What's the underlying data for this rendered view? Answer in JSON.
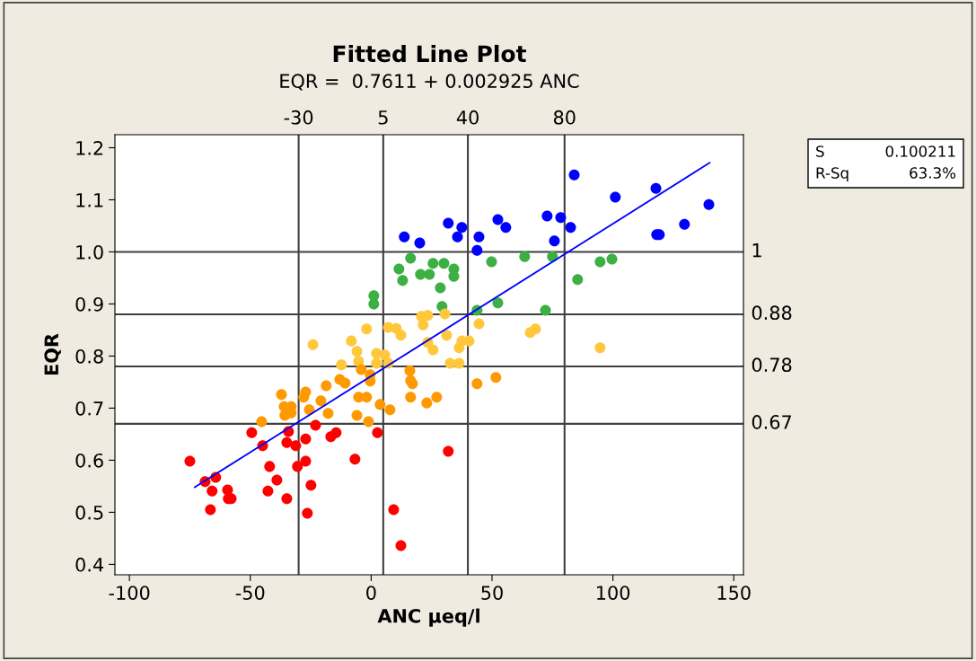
{
  "chart_data": {
    "type": "scatter",
    "title": "Fitted Line Plot",
    "subtitle": "EQR =  0.7611 + 0.002925 ANC",
    "xlabel": "ANC µeq/l",
    "ylabel": "EQR",
    "xlim": [
      -106,
      154
    ],
    "ylim": [
      0.38,
      1.225
    ],
    "xticks": [
      -100,
      -50,
      0,
      50,
      100,
      150
    ],
    "yticks": [
      0.4,
      0.5,
      0.6,
      0.7,
      0.8,
      0.9,
      {
        "value": 1.0,
        "label": "1.0"
      },
      1.1,
      1.2
    ],
    "marker": "circle",
    "grid": false,
    "legend": false,
    "series": [
      {
        "color": "#0000ff",
        "x": [
          13.7,
          20.1,
          31.9,
          37.5,
          35.7,
          44.6,
          43.8,
          52.4,
          55.7,
          72.8,
          78.4,
          82.5,
          75.8,
          84.0,
          101.0,
          117.8,
          139.7,
          129.6,
          119.2,
          118.1
        ],
        "values": [
          1.029,
          1.017,
          1.055,
          1.047,
          1.029,
          1.029,
          1.003,
          1.062,
          1.047,
          1.069,
          1.066,
          1.047,
          1.021,
          1.148,
          1.105,
          1.122,
          1.091,
          1.053,
          1.033,
          1.033
        ]
      },
      {
        "color": "#3cb043",
        "x": [
          16.3,
          11.5,
          13.0,
          20.4,
          24.1,
          25.6,
          30.1,
          34.2,
          34.2,
          28.6,
          29.3,
          1.1,
          1.1,
          49.8,
          63.5,
          75.0,
          85.4,
          94.7,
          99.6,
          43.8,
          52.4,
          72.1
        ],
        "values": [
          0.988,
          0.967,
          0.945,
          0.957,
          0.957,
          0.978,
          0.978,
          0.967,
          0.953,
          0.931,
          0.895,
          0.916,
          0.9,
          0.981,
          0.991,
          0.991,
          0.947,
          0.981,
          0.986,
          0.888,
          0.902,
          0.888
        ]
      },
      {
        "color": "#ffc83c",
        "x": [
          -24.1,
          -1.9,
          -8.2,
          -5.9,
          -5.2,
          -12.3,
          2.2,
          5.6,
          2.2,
          7.1,
          7.1,
          10.4,
          12.3,
          20.8,
          23.4,
          21.5,
          30.5,
          31.2,
          23.4,
          25.6,
          37.5,
          40.5,
          36.4,
          32.7,
          36.4,
          44.6,
          65.8,
          68.0,
          94.7
        ],
        "values": [
          0.822,
          0.852,
          0.829,
          0.809,
          0.79,
          0.783,
          0.805,
          0.802,
          0.786,
          0.786,
          0.855,
          0.853,
          0.84,
          0.876,
          0.878,
          0.86,
          0.881,
          0.84,
          0.826,
          0.812,
          0.829,
          0.829,
          0.816,
          0.786,
          0.786,
          0.862,
          0.845,
          0.852,
          0.816
        ]
      },
      {
        "color": "#ff9900",
        "x": [
          -37.1,
          -45.3,
          -36.0,
          -33.1,
          -35.7,
          -33.1,
          -27.1,
          -27.9,
          -25.6,
          -20.8,
          -18.6,
          -17.8,
          -13.0,
          -10.8,
          -5.2,
          -1.9,
          -5.9,
          -1.1,
          3.7,
          7.8,
          -4.1,
          -0.4,
          -0.4,
          16.0,
          16.3,
          17.1,
          16.3,
          23.0,
          27.1,
          43.8,
          51.6
        ],
        "values": [
          0.726,
          0.674,
          0.703,
          0.703,
          0.686,
          0.691,
          0.731,
          0.721,
          0.697,
          0.714,
          0.743,
          0.69,
          0.755,
          0.748,
          0.721,
          0.721,
          0.686,
          0.674,
          0.707,
          0.697,
          0.774,
          0.764,
          0.752,
          0.772,
          0.753,
          0.747,
          0.721,
          0.71,
          0.721,
          0.747,
          0.759
        ]
      },
      {
        "color": "#ff0000",
        "x": [
          -75.0,
          -68.7,
          -64.3,
          -65.8,
          -66.5,
          -59.4,
          -57.9,
          -59.1,
          -49.4,
          -44.9,
          -42.0,
          -39.0,
          -42.7,
          -34.9,
          -34.2,
          -34.9,
          -31.2,
          -27.1,
          -27.1,
          -30.5,
          -24.9,
          -26.4,
          -23.0,
          -16.7,
          -14.5,
          -6.7,
          2.6,
          9.3,
          31.9,
          12.3
        ],
        "values": [
          0.598,
          0.559,
          0.567,
          0.541,
          0.505,
          0.543,
          0.526,
          0.526,
          0.653,
          0.628,
          0.588,
          0.562,
          0.541,
          0.526,
          0.655,
          0.634,
          0.628,
          0.641,
          0.598,
          0.588,
          0.552,
          0.498,
          0.667,
          0.645,
          0.653,
          0.602,
          0.653,
          0.505,
          0.617,
          0.436
        ]
      },
      {
        "type": "line",
        "color": "#0000ff",
        "marker": "none",
        "x": [
          -73,
          140
        ],
        "values": [
          0.548,
          1.171
        ]
      }
    ],
    "ref_lines": [
      {
        "axis": "x",
        "value": -30,
        "label": "-30",
        "color": "#404040"
      },
      {
        "axis": "x",
        "value": 5,
        "label": "5",
        "color": "#404040"
      },
      {
        "axis": "x",
        "value": 40,
        "label": "40",
        "color": "#404040"
      },
      {
        "axis": "x",
        "value": 80,
        "label": "80",
        "color": "#404040"
      },
      {
        "axis": "y",
        "value": 1,
        "label": "1",
        "color": "#404040"
      },
      {
        "axis": "y",
        "value": 0.88,
        "label": "0.88",
        "color": "#404040"
      },
      {
        "axis": "y",
        "value": 0.78,
        "label": "0.78",
        "color": "#404040"
      },
      {
        "axis": "y",
        "value": 0.67,
        "label": "0.67",
        "color": "#404040"
      }
    ],
    "annotations": [
      "S",
      "0.100211",
      "R-Sq",
      "63.3%"
    ]
  }
}
